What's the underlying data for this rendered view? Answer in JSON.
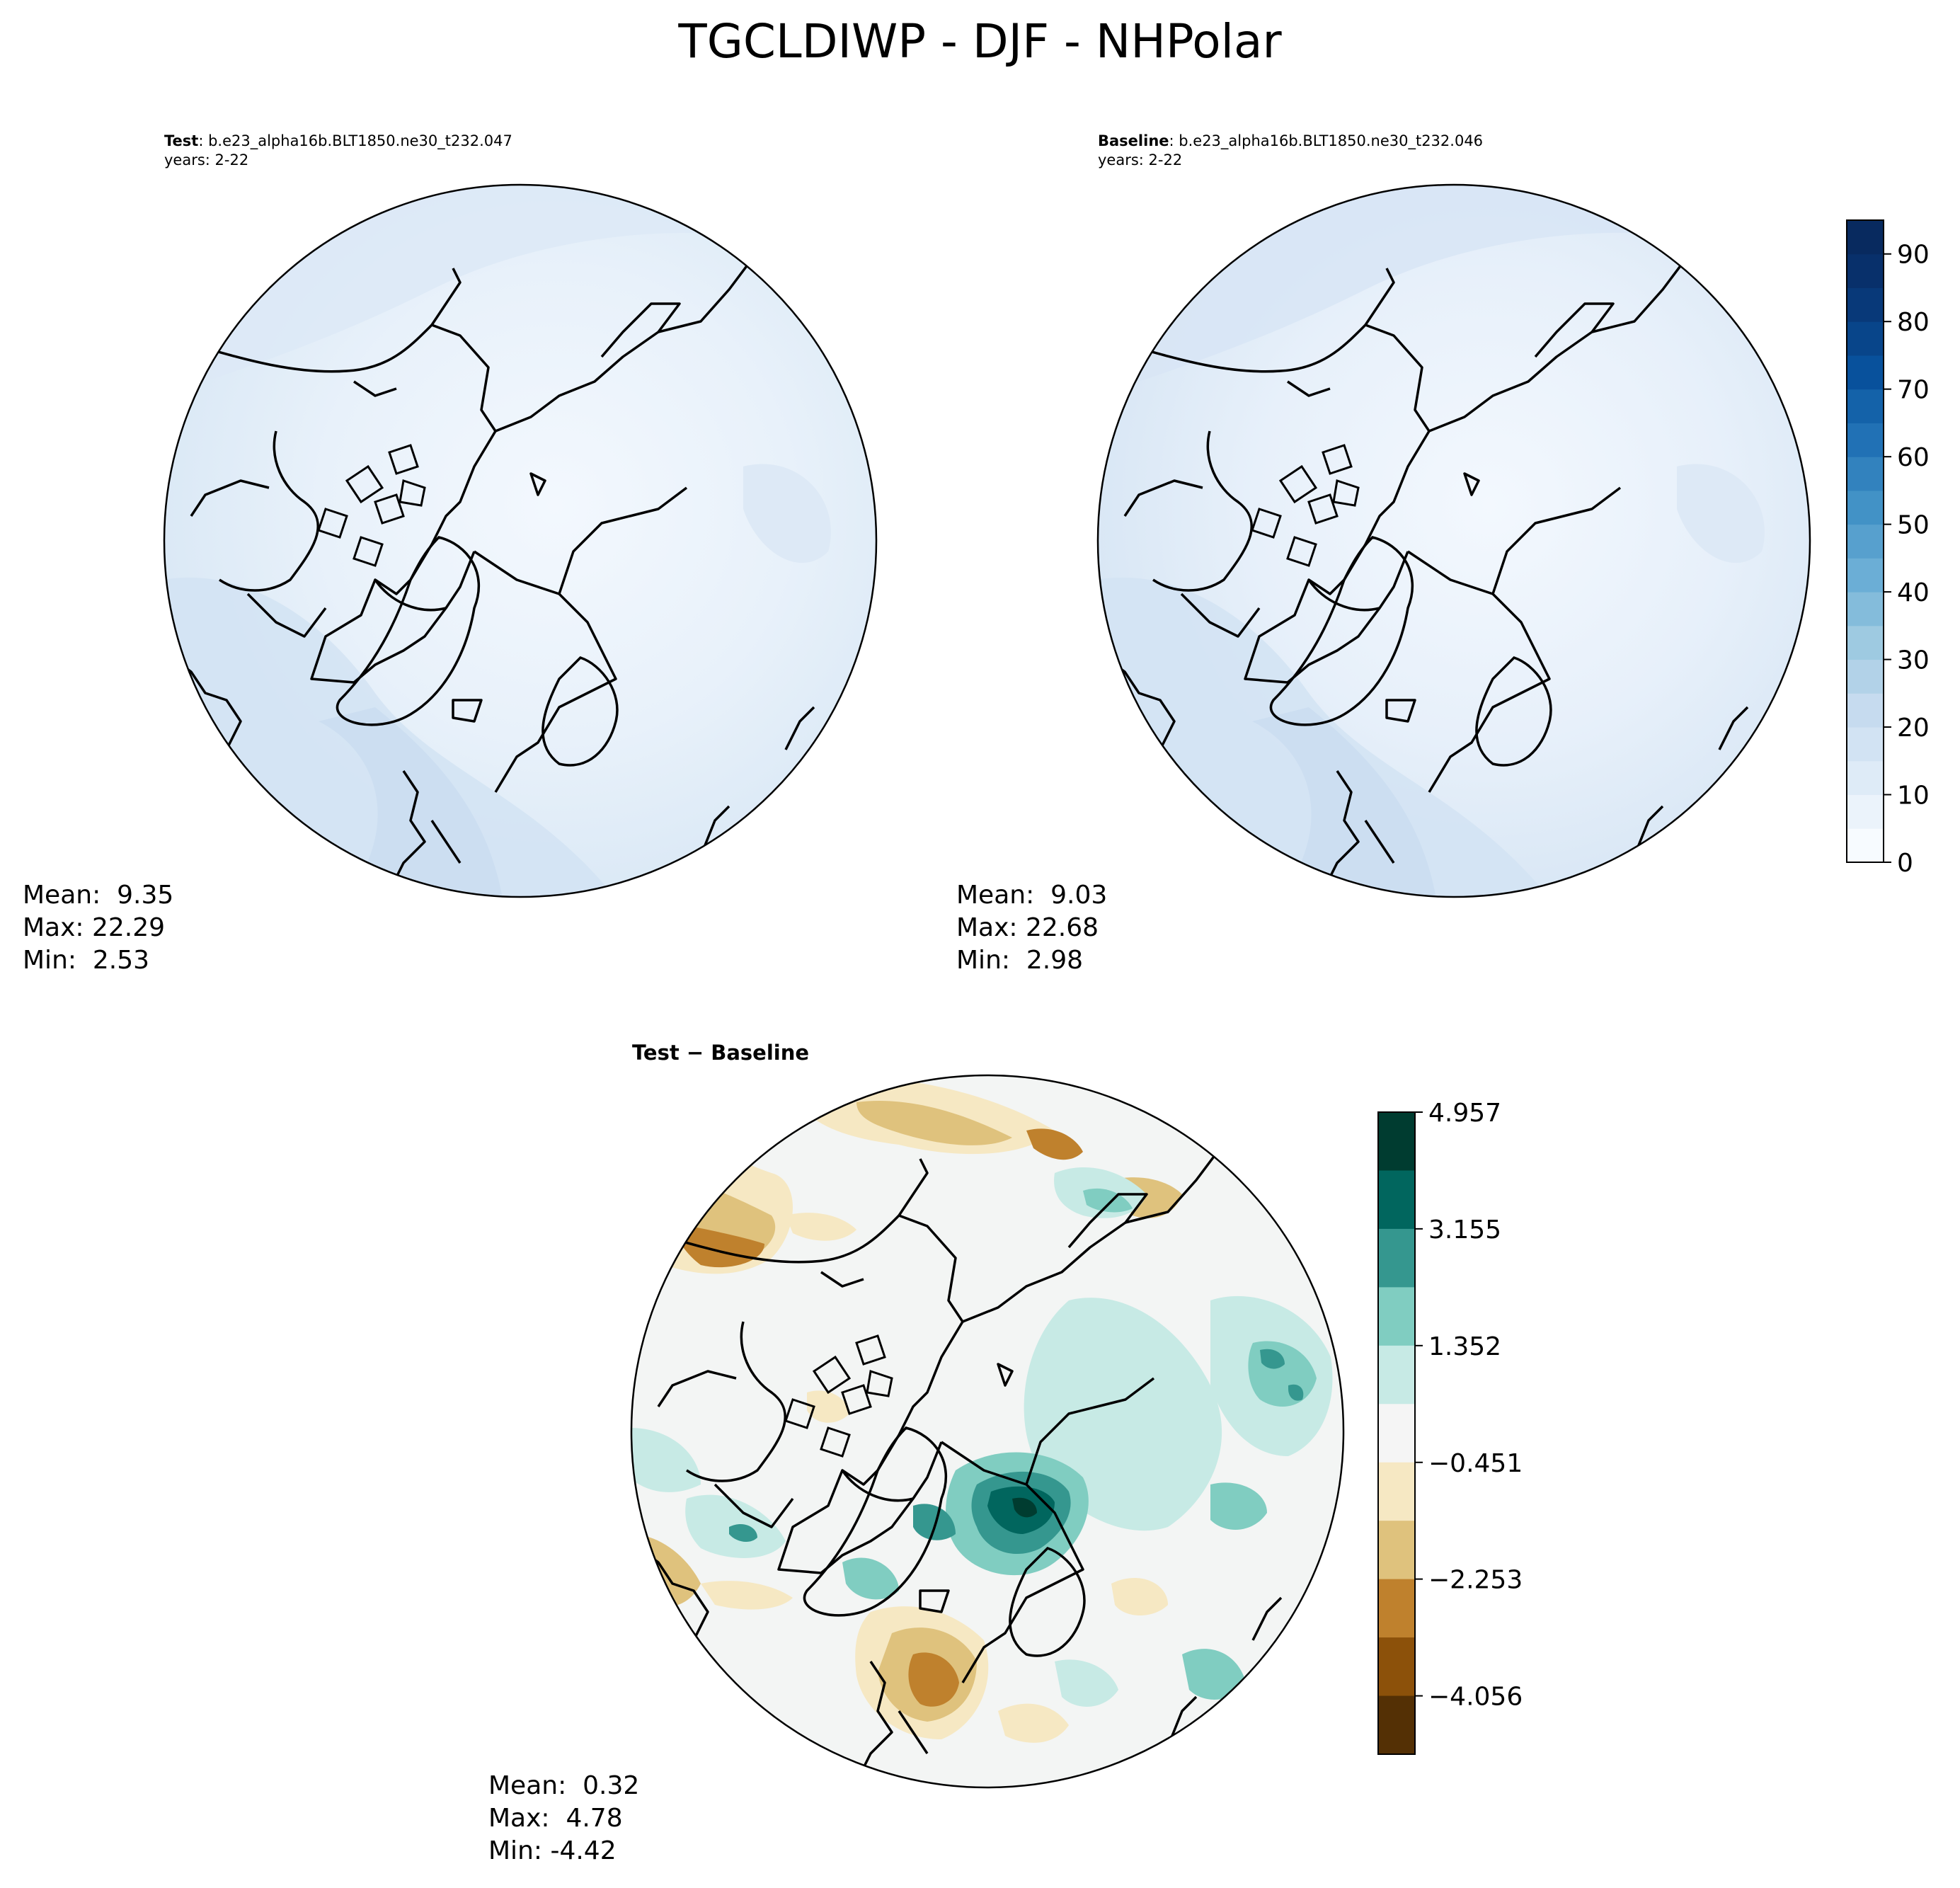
{
  "figure": {
    "title": "TGCLDIWP - DJF - NHPolar"
  },
  "test_panel": {
    "label": "Test",
    "case": ": b.e23_alpha16b.BLT1850.ne30_t232.047",
    "years": "years: 2-22",
    "stats": {
      "mean": "Mean:  9.35",
      "max": "Max: 22.29",
      "min": "Min:  2.53"
    }
  },
  "baseline_panel": {
    "label": "Baseline",
    "case": ": b.e23_alpha16b.BLT1850.ne30_t232.046",
    "years": "years: 2-22",
    "stats": {
      "mean": "Mean:  9.03",
      "max": "Max: 22.68",
      "min": "Min:  2.98"
    }
  },
  "diff_panel": {
    "title": "Test − Baseline",
    "stats": {
      "mean": "Mean:  0.32",
      "max": "Max:  4.78",
      "min": "Min: -4.42"
    }
  },
  "chart_data": [
    {
      "type": "heatmap",
      "name": "main colorbar (Blues)",
      "range": [
        0,
        95
      ],
      "levels": 19,
      "ticks": [
        "0",
        "10",
        "20",
        "30",
        "40",
        "50",
        "60",
        "70",
        "80",
        "90"
      ],
      "tick_values": [
        0,
        10,
        20,
        30,
        40,
        50,
        60,
        70,
        80,
        90
      ],
      "colors": [
        "#f7fbff",
        "#ebf3fb",
        "#deebf7",
        "#d2e3f3",
        "#c6dbef",
        "#b2d2e8",
        "#9ecae1",
        "#84bcdb",
        "#6baed6",
        "#57a0ce",
        "#4292c6",
        "#3282be",
        "#2171b5",
        "#1462a9",
        "#08519c",
        "#08458a",
        "#083979",
        "#08306b",
        "#082a5f"
      ]
    },
    {
      "type": "heatmap",
      "name": "difference colorbar (BrBG)",
      "range": [
        -4.957,
        4.957
      ],
      "levels": 11,
      "ticks": [
        "4.957",
        "3.155",
        "1.352",
        "−0.451",
        "−2.253",
        "−4.056"
      ],
      "tick_values": [
        4.957,
        3.155,
        1.352,
        -0.451,
        -2.253,
        -4.056
      ],
      "colors": [
        "#003c30",
        "#01665e",
        "#35978f",
        "#80cdc1",
        "#c7eae5",
        "#f5f5f5",
        "#f6e8c3",
        "#dfc27d",
        "#bf812d",
        "#8c510a",
        "#543005"
      ]
    }
  ]
}
